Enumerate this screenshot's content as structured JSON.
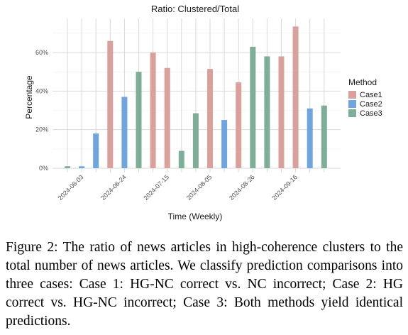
{
  "chart_data": {
    "type": "bar",
    "title": "Ratio: Clustered/Total",
    "xlabel": "Time (Weekly)",
    "ylabel": "Percentage",
    "ylim": [
      0,
      0.75
    ],
    "yticks": [
      {
        "value": 0,
        "label": "0%"
      },
      {
        "value": 0.2,
        "label": "20%"
      },
      {
        "value": 0.4,
        "label": "40%"
      },
      {
        "value": 0.6,
        "label": "60%"
      }
    ],
    "xtick_labels": [
      "2024-06-03",
      "2024-06-24",
      "2024-07-15",
      "2024-08-05",
      "2024-08-26",
      "2024-09-16"
    ],
    "legend_title": "Method",
    "legend_position": "right",
    "grid": true,
    "series": [
      {
        "name": "Case1",
        "color": "#d9a09c"
      },
      {
        "name": "Case2",
        "color": "#6fa5df"
      },
      {
        "name": "Case3",
        "color": "#7fae98"
      }
    ],
    "weeks": [
      {
        "case": 2,
        "value": 0.01
      },
      {
        "case": 1,
        "value": 0.01
      },
      {
        "case": 1,
        "value": 0.18
      },
      {
        "case": 0,
        "value": 0.66
      },
      {
        "case": 1,
        "value": 0.37
      },
      {
        "case": 2,
        "value": 0.5
      },
      {
        "case": 0,
        "value": 0.6
      },
      {
        "case": 0,
        "value": 0.52
      },
      {
        "case": 2,
        "value": 0.09
      },
      {
        "case": 2,
        "value": 0.285
      },
      {
        "case": 0,
        "value": 0.515
      },
      {
        "case": 1,
        "value": 0.25
      },
      {
        "case": 0,
        "value": 0.445
      },
      {
        "case": 2,
        "value": 0.63
      },
      {
        "case": 2,
        "value": 0.58
      },
      {
        "case": 0,
        "value": 0.58
      },
      {
        "case": 0,
        "value": 0.735
      },
      {
        "case": 1,
        "value": 0.31
      },
      {
        "case": 2,
        "value": 0.325
      }
    ]
  },
  "caption": "Figure 2: The ratio of news articles in high-coherence clusters to the total number of news articles. We classify prediction comparisons into three cases: Case 1: HG-NC correct vs. NC incorrect; Case 2: HG correct vs. HG-NC incorrect; Case 3: Both methods yield identical predictions."
}
